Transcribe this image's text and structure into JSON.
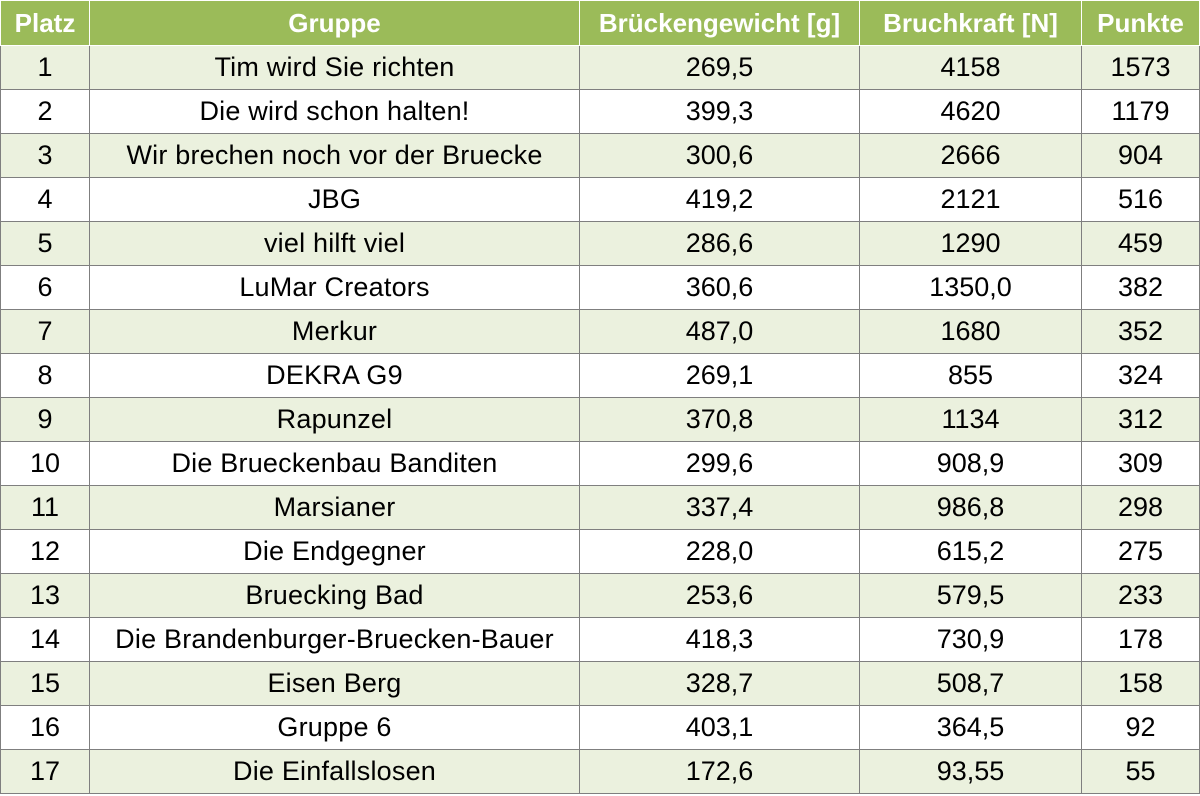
{
  "table": {
    "headers": [
      "Platz",
      "Gruppe",
      "Brückengewicht [g]",
      "Bruchkraft [N]",
      "Punkte"
    ],
    "rows": [
      [
        "1",
        "Tim wird Sie richten",
        "269,5",
        "4158",
        "1573"
      ],
      [
        "2",
        "Die wird schon halten!",
        "399,3",
        "4620",
        "1179"
      ],
      [
        "3",
        "Wir brechen noch vor der Bruecke",
        "300,6",
        "2666",
        "904"
      ],
      [
        "4",
        "JBG",
        "419,2",
        "2121",
        "516"
      ],
      [
        "5",
        "viel hilft viel",
        "286,6",
        "1290",
        "459"
      ],
      [
        "6",
        "LuMar Creators",
        "360,6",
        "1350,0",
        "382"
      ],
      [
        "7",
        "Merkur",
        "487,0",
        "1680",
        "352"
      ],
      [
        "8",
        "DEKRA G9",
        "269,1",
        "855",
        "324"
      ],
      [
        "9",
        "Rapunzel",
        "370,8",
        "1134",
        "312"
      ],
      [
        "10",
        "Die Brueckenbau Banditen",
        "299,6",
        "908,9",
        "309"
      ],
      [
        "11",
        "Marsianer",
        "337,4",
        "986,8",
        "298"
      ],
      [
        "12",
        "Die Endgegner",
        "228,0",
        "615,2",
        "275"
      ],
      [
        "13",
        "Bruecking Bad",
        "253,6",
        "579,5",
        "233"
      ],
      [
        "14",
        "Die Brandenburger-Bruecken-Bauer",
        "418,3",
        "730,9",
        "178"
      ],
      [
        "15",
        "Eisen Berg",
        "328,7",
        "508,7",
        "158"
      ],
      [
        "16",
        "Gruppe 6",
        "403,1",
        "364,5",
        "92"
      ],
      [
        "17",
        "Die Einfallslosen",
        "172,6",
        "93,55",
        "55"
      ]
    ]
  },
  "colors": {
    "header_bg": "#9bbb59",
    "header_text": "#ffffff",
    "band_bg": "#ebf1de",
    "border": "#7f7f7f"
  }
}
